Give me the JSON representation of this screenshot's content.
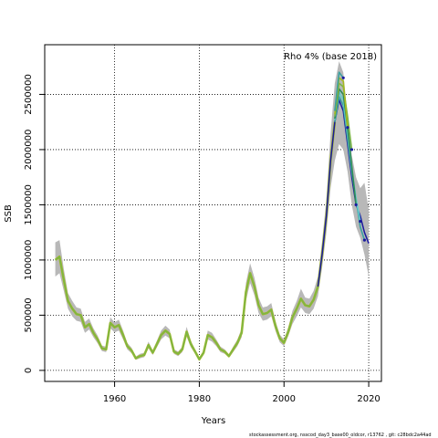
{
  "chart_data": {
    "type": "line",
    "annotation": "Rho 4% (base 2018)",
    "xlabel": "Years",
    "ylabel": "SSB",
    "xlim": [
      1943.5,
      2023
    ],
    "ylim": [
      -100000,
      2950000
    ],
    "xticks": [
      1960,
      1980,
      2000,
      2020
    ],
    "xtick_labels": [
      "1960",
      "1980",
      "2000",
      "2020"
    ],
    "yticks": [
      0,
      500000,
      1000000,
      1500000,
      2000000,
      2500000
    ],
    "ytick_labels": [
      "0",
      "500000",
      "1000000",
      "1500000",
      "2000000",
      "2500000"
    ],
    "grid": true,
    "grid_style": "dotted",
    "colors": {
      "band": "#b8b8b8",
      "base": "#1a1a9e",
      "peels": [
        "#3aa0a0",
        "#66cccc",
        "#2e8b57",
        "#7ab648",
        "#a6b820"
      ]
    },
    "base_series": {
      "x": [
        1946,
        1947,
        1948,
        1949,
        1950,
        1951,
        1952,
        1953,
        1954,
        1955,
        1956,
        1957,
        1958,
        1959,
        1960,
        1961,
        1962,
        1963,
        1964,
        1965,
        1966,
        1967,
        1968,
        1969,
        1970,
        1971,
        1972,
        1973,
        1974,
        1975,
        1976,
        1977,
        1978,
        1979,
        1980,
        1981,
        1982,
        1983,
        1984,
        1985,
        1986,
        1987,
        1988,
        1989,
        1990,
        1991,
        1992,
        1993,
        1994,
        1995,
        1996,
        1997,
        1998,
        1999,
        2000,
        2001,
        2002,
        2003,
        2004,
        2005,
        2006,
        2007,
        2008,
        2009,
        2010,
        2011,
        2012,
        2013,
        2014,
        2015,
        2016,
        2017,
        2018,
        2019,
        2020
      ],
      "y": [
        1000000,
        1030000,
        820000,
        630000,
        560000,
        510000,
        500000,
        390000,
        420000,
        340000,
        280000,
        200000,
        190000,
        430000,
        390000,
        410000,
        320000,
        220000,
        180000,
        110000,
        130000,
        140000,
        230000,
        160000,
        240000,
        320000,
        360000,
        330000,
        170000,
        150000,
        190000,
        350000,
        240000,
        170000,
        100000,
        160000,
        320000,
        300000,
        250000,
        190000,
        170000,
        130000,
        190000,
        250000,
        340000,
        710000,
        880000,
        760000,
        590000,
        510000,
        520000,
        550000,
        400000,
        290000,
        250000,
        350000,
        480000,
        560000,
        650000,
        590000,
        580000,
        640000,
        760000,
        1050000,
        1400000,
        1900000,
        2250000,
        2450000,
        2350000,
        2050000,
        1750000,
        1500000,
        1400000,
        1250000,
        1150000
      ],
      "lower": [
        850000,
        880000,
        720000,
        560000,
        490000,
        450000,
        440000,
        340000,
        370000,
        300000,
        245000,
        175000,
        165000,
        380000,
        345000,
        360000,
        280000,
        190000,
        155000,
        95000,
        110000,
        120000,
        200000,
        140000,
        210000,
        280000,
        315000,
        290000,
        150000,
        130000,
        165000,
        305000,
        210000,
        150000,
        85000,
        140000,
        280000,
        260000,
        220000,
        165000,
        150000,
        115000,
        165000,
        220000,
        300000,
        630000,
        790000,
        680000,
        520000,
        450000,
        460000,
        490000,
        355000,
        255000,
        220000,
        310000,
        420000,
        490000,
        570000,
        520000,
        510000,
        560000,
        670000,
        930000,
        1250000,
        1650000,
        1900000,
        2050000,
        2000000,
        1800000,
        1500000,
        1300000,
        1200000,
        1050000,
        850000
      ],
      "upper": [
        1160000,
        1180000,
        920000,
        700000,
        630000,
        570000,
        560000,
        440000,
        470000,
        380000,
        315000,
        225000,
        215000,
        480000,
        435000,
        460000,
        360000,
        250000,
        205000,
        125000,
        150000,
        160000,
        260000,
        180000,
        270000,
        360000,
        405000,
        370000,
        190000,
        170000,
        215000,
        395000,
        270000,
        190000,
        115000,
        180000,
        360000,
        340000,
        280000,
        215000,
        190000,
        145000,
        215000,
        280000,
        380000,
        790000,
        970000,
        840000,
        660000,
        570000,
        580000,
        610000,
        445000,
        325000,
        280000,
        390000,
        540000,
        630000,
        740000,
        660000,
        650000,
        720000,
        850000,
        1170000,
        1550000,
        2150000,
        2600000,
        2800000,
        2700000,
        2300000,
        1950000,
        1750000,
        1650000,
        1700000,
        1450000
      ]
    },
    "peel_series": [
      {
        "end": 2019,
        "x": [
          2012,
          2013,
          2014,
          2015,
          2016,
          2017,
          2018,
          2019
        ],
        "y": [
          2250000,
          2480000,
          2400000,
          2100000,
          1800000,
          1550000,
          1300000,
          1180000
        ]
      },
      {
        "end": 2018,
        "x": [
          2012,
          2013,
          2014,
          2015,
          2016,
          2017,
          2018
        ],
        "y": [
          2270000,
          2520000,
          2450000,
          2150000,
          1820000,
          1560000,
          1350000
        ]
      },
      {
        "end": 2017,
        "x": [
          2012,
          2013,
          2014,
          2015,
          2016,
          2017
        ],
        "y": [
          2280000,
          2550000,
          2500000,
          2200000,
          1850000,
          1500000
        ]
      },
      {
        "end": 2016,
        "x": [
          2012,
          2013,
          2014,
          2015,
          2016
        ],
        "y": [
          2300000,
          2600000,
          2570000,
          2300000,
          2000000
        ]
      },
      {
        "end": 2015,
        "x": [
          2012,
          2013,
          2014,
          2015
        ],
        "y": [
          2320000,
          2650000,
          2620000,
          2200000
        ]
      },
      {
        "end": 2014,
        "x": [
          2012,
          2013,
          2014
        ],
        "y": [
          2350000,
          2700000,
          2650000
        ]
      }
    ]
  },
  "footer": "stockassessment.org, nsscod_day3_base00_oldcor, r13762 , git: c28bdc2a44ad"
}
